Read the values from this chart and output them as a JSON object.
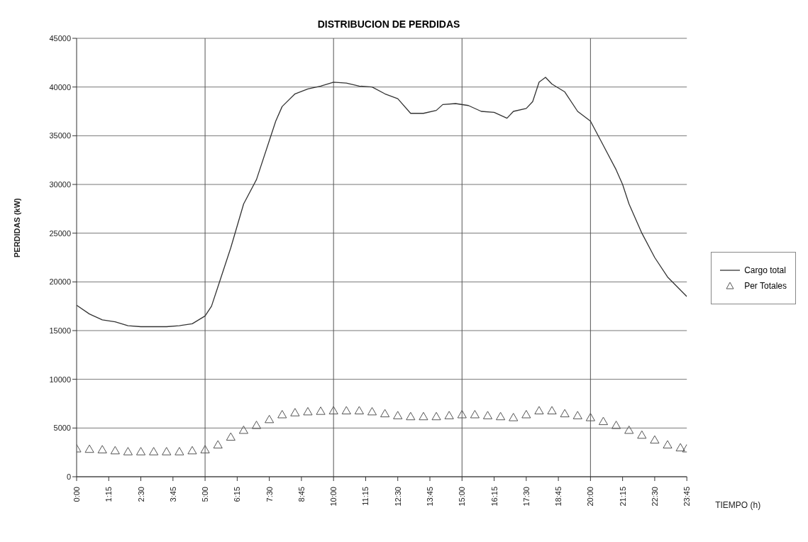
{
  "chart_data": {
    "type": "line",
    "title": "DISTRIBUCION DE PERDIDAS",
    "xlabel": "TIEMPO (h)",
    "ylabel": "PERDIDAS (kW)",
    "xlim": [
      0,
      23.75
    ],
    "xticks": [
      {
        "value": 0,
        "label": "0:00"
      },
      {
        "value": 1.25,
        "label": "1:15"
      },
      {
        "value": 2.5,
        "label": "2:30"
      },
      {
        "value": 3.75,
        "label": "3:45"
      },
      {
        "value": 5,
        "label": "5:00"
      },
      {
        "value": 6.25,
        "label": "6:15"
      },
      {
        "value": 7.5,
        "label": "7:30"
      },
      {
        "value": 8.75,
        "label": "8:45"
      },
      {
        "value": 10,
        "label": "10:00"
      },
      {
        "value": 11.25,
        "label": "11:15"
      },
      {
        "value": 12.5,
        "label": "12:30"
      },
      {
        "value": 13.75,
        "label": "13:45"
      },
      {
        "value": 15,
        "label": "15:00"
      },
      {
        "value": 16.25,
        "label": "16:15"
      },
      {
        "value": 17.5,
        "label": "17:30"
      },
      {
        "value": 18.75,
        "label": "18:45"
      },
      {
        "value": 20,
        "label": "20:00"
      },
      {
        "value": 21.25,
        "label": "21:15"
      },
      {
        "value": 22.5,
        "label": "22:30"
      },
      {
        "value": 23.75,
        "label": "23:45"
      }
    ],
    "ylim": [
      0,
      45000
    ],
    "yticks": [
      0,
      5000,
      10000,
      15000,
      20000,
      25000,
      30000,
      35000,
      40000,
      45000
    ],
    "grid": "y",
    "legend": "right",
    "ref_lines": [
      {
        "axis": "x",
        "value": 5,
        "color": "#555555"
      },
      {
        "axis": "x",
        "value": 10,
        "color": "#555555"
      },
      {
        "axis": "x",
        "value": 15,
        "color": "#555555"
      },
      {
        "axis": "x",
        "value": 20,
        "color": "#555555"
      }
    ],
    "series": [
      {
        "name": "Cargo total",
        "type": "line",
        "color": "#333333",
        "marker": "none",
        "line_style": "solid",
        "x": [
          0,
          0.5,
          1,
          1.5,
          2,
          2.5,
          3,
          3.5,
          4,
          4.5,
          5,
          5.25,
          5.5,
          6,
          6.5,
          7,
          7.5,
          7.75,
          8,
          8.5,
          9,
          9.5,
          10,
          10.5,
          11,
          11.5,
          12,
          12.5,
          13,
          13.5,
          14,
          14.25,
          14.75,
          15.25,
          15.75,
          16.25,
          16.75,
          17,
          17.5,
          17.75,
          18,
          18.25,
          18.5,
          19,
          19.5,
          20,
          20.5,
          21,
          21.25,
          21.5,
          22,
          22.5,
          23,
          23.75
        ],
        "values": [
          17600,
          16700,
          16100,
          15900,
          15500,
          15400,
          15400,
          15400,
          15500,
          15700,
          16500,
          17500,
          19500,
          23500,
          28000,
          30500,
          34500,
          36500,
          38000,
          39300,
          39800,
          40100,
          40500,
          40400,
          40100,
          40000,
          39300,
          38800,
          37300,
          37300,
          37600,
          38200,
          38300,
          38100,
          37500,
          37400,
          36800,
          37500,
          37800,
          38500,
          40500,
          41000,
          40300,
          39500,
          37500,
          36500,
          34000,
          31500,
          30000,
          28000,
          25000,
          22500,
          20500,
          18500
        ]
      },
      {
        "name": "Per Totales",
        "type": "scatter",
        "color": "#555555",
        "marker": "triangle",
        "x": [
          0,
          0.5,
          1,
          1.5,
          2,
          2.5,
          3,
          3.5,
          4,
          4.5,
          5,
          5.5,
          6,
          6.5,
          7,
          7.5,
          8,
          8.5,
          9,
          9.5,
          10,
          10.5,
          11,
          11.5,
          12,
          12.5,
          13,
          13.5,
          14,
          14.5,
          15,
          15.5,
          16,
          16.5,
          17,
          17.5,
          18,
          18.5,
          19,
          19.5,
          20,
          20.5,
          21,
          21.5,
          22,
          22.5,
          23,
          23.5,
          23.75
        ],
        "values": [
          2800,
          2750,
          2700,
          2600,
          2500,
          2500,
          2500,
          2500,
          2500,
          2600,
          2700,
          3200,
          4000,
          4700,
          5200,
          5800,
          6300,
          6500,
          6600,
          6650,
          6700,
          6700,
          6700,
          6600,
          6400,
          6200,
          6100,
          6100,
          6100,
          6200,
          6300,
          6300,
          6200,
          6100,
          6000,
          6300,
          6700,
          6700,
          6400,
          6200,
          6000,
          5600,
          5200,
          4700,
          4200,
          3700,
          3200,
          2900,
          2800
        ]
      }
    ]
  }
}
